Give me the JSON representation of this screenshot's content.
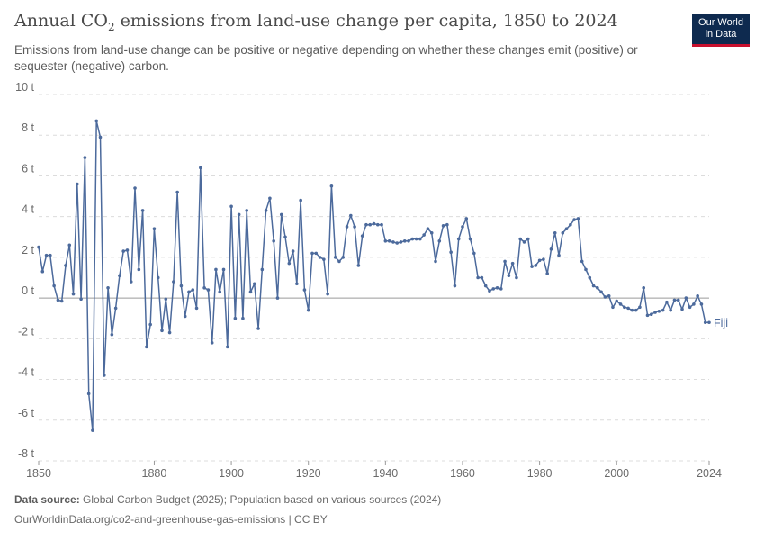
{
  "header": {
    "title_main": "Annual CO",
    "title_sub": "2",
    "title_rest": " emissions from land-use change per capita, 1850 to 2024",
    "subtitle": "Emissions from land-use change can be positive or negative depending on whether these changes emit (positive) or sequester (negative) carbon."
  },
  "logo": {
    "line1": "Our World",
    "line2": "in Data",
    "bg_color": "#0e2a4f",
    "accent_color": "#c8102e"
  },
  "footer": {
    "source_label": "Data source:",
    "source_text": " Global Carbon Budget (2025); Population based on various sources (2024)",
    "url_text": "OurWorldinData.org/co2-and-greenhouse-gas-emissions | CC BY"
  },
  "chart_data": {
    "type": "line",
    "title": "Annual CO₂ emissions from land-use change per capita, 1850 to 2024",
    "xlabel": "",
    "ylabel": "",
    "xlim": [
      1850,
      2024
    ],
    "ylim": [
      -8,
      10
    ],
    "y_ticks": [
      -8,
      -6,
      -4,
      -2,
      0,
      2,
      4,
      6,
      8,
      10
    ],
    "y_tick_labels": [
      "-8 t",
      "-6 t",
      "-4 t",
      "-2 t",
      "0 t",
      "2 t",
      "4 t",
      "6 t",
      "8 t",
      "10 t"
    ],
    "x_ticks": [
      1850,
      1880,
      1900,
      1920,
      1940,
      1960,
      1980,
      2000,
      2024
    ],
    "x_tick_labels": [
      "1850",
      "1880",
      "1900",
      "1920",
      "1940",
      "1960",
      "1980",
      "2000",
      "2024"
    ],
    "grid": "horizontal-dashed",
    "line_color": "#4c6a9c",
    "series": [
      {
        "name": "Fiji",
        "x": [
          1850,
          1851,
          1852,
          1853,
          1854,
          1855,
          1856,
          1857,
          1858,
          1859,
          1860,
          1861,
          1862,
          1863,
          1864,
          1865,
          1866,
          1867,
          1868,
          1869,
          1870,
          1871,
          1872,
          1873,
          1874,
          1875,
          1876,
          1877,
          1878,
          1879,
          1880,
          1881,
          1882,
          1883,
          1884,
          1885,
          1886,
          1887,
          1888,
          1889,
          1890,
          1891,
          1892,
          1893,
          1894,
          1895,
          1896,
          1897,
          1898,
          1899,
          1900,
          1901,
          1902,
          1903,
          1904,
          1905,
          1906,
          1907,
          1908,
          1909,
          1910,
          1911,
          1912,
          1913,
          1914,
          1915,
          1916,
          1917,
          1918,
          1919,
          1920,
          1921,
          1922,
          1923,
          1924,
          1925,
          1926,
          1927,
          1928,
          1929,
          1930,
          1931,
          1932,
          1933,
          1934,
          1935,
          1936,
          1937,
          1938,
          1939,
          1940,
          1941,
          1942,
          1943,
          1944,
          1945,
          1946,
          1947,
          1948,
          1949,
          1950,
          1951,
          1952,
          1953,
          1954,
          1955,
          1956,
          1957,
          1958,
          1959,
          1960,
          1961,
          1962,
          1963,
          1964,
          1965,
          1966,
          1967,
          1968,
          1969,
          1970,
          1971,
          1972,
          1973,
          1974,
          1975,
          1976,
          1977,
          1978,
          1979,
          1980,
          1981,
          1982,
          1983,
          1984,
          1985,
          1986,
          1987,
          1988,
          1989,
          1990,
          1991,
          1992,
          1993,
          1994,
          1995,
          1996,
          1997,
          1998,
          1999,
          2000,
          2001,
          2002,
          2003,
          2004,
          2005,
          2006,
          2007,
          2008,
          2009,
          2010,
          2011,
          2012,
          2013,
          2014,
          2015,
          2016,
          2017,
          2018,
          2019,
          2020,
          2021,
          2022,
          2023,
          2024
        ],
        "values": [
          2.5,
          1.3,
          2.1,
          2.1,
          0.6,
          -0.1,
          -0.15,
          1.6,
          2.6,
          0.2,
          5.6,
          -0.05,
          6.9,
          -4.7,
          -6.5,
          8.7,
          7.9,
          -3.8,
          0.5,
          -1.8,
          -0.5,
          1.1,
          2.3,
          2.35,
          0.8,
          5.4,
          1.4,
          4.3,
          -2.4,
          -1.3,
          3.4,
          1.0,
          -1.6,
          -0.05,
          -1.7,
          0.8,
          5.2,
          0.6,
          -0.9,
          0.3,
          0.4,
          -0.5,
          6.4,
          0.5,
          0.4,
          -2.2,
          1.4,
          0.3,
          1.4,
          -2.4,
          4.5,
          -1.0,
          4.1,
          -1.0,
          4.3,
          0.3,
          0.7,
          -1.5,
          1.4,
          4.3,
          4.9,
          2.8,
          0.0,
          4.1,
          3.0,
          1.7,
          2.3,
          0.7,
          4.8,
          0.4,
          -0.6,
          2.2,
          2.2,
          2.0,
          1.9,
          0.2,
          5.5,
          2.0,
          1.8,
          2.0,
          3.5,
          4.05,
          3.5,
          1.6,
          3.05,
          3.6,
          3.6,
          3.65,
          3.6,
          3.6,
          2.8,
          2.8,
          2.75,
          2.7,
          2.75,
          2.8,
          2.8,
          2.9,
          2.9,
          2.9,
          3.1,
          3.4,
          3.2,
          1.8,
          2.8,
          3.55,
          3.6,
          2.25,
          0.6,
          2.9,
          3.5,
          3.9,
          2.9,
          2.2,
          1.0,
          1.0,
          0.6,
          0.35,
          0.45,
          0.5,
          0.45,
          1.8,
          1.1,
          1.7,
          1.0,
          2.9,
          2.75,
          2.9,
          1.55,
          1.6,
          1.85,
          1.9,
          1.2,
          2.4,
          3.2,
          2.1,
          3.2,
          3.4,
          3.6,
          3.85,
          3.9,
          1.8,
          1.4,
          1.0,
          0.6,
          0.5,
          0.3,
          0.05,
          0.1,
          -0.45,
          -0.15,
          -0.3,
          -0.45,
          -0.5,
          -0.6,
          -0.6,
          -0.45,
          0.5,
          -0.85,
          -0.8,
          -0.7,
          -0.65,
          -0.6,
          -0.2,
          -0.6,
          -0.1,
          -0.1,
          -0.55,
          0.0,
          -0.45,
          -0.3,
          0.1,
          -0.3,
          -1.2,
          -1.2
        ]
      }
    ]
  }
}
